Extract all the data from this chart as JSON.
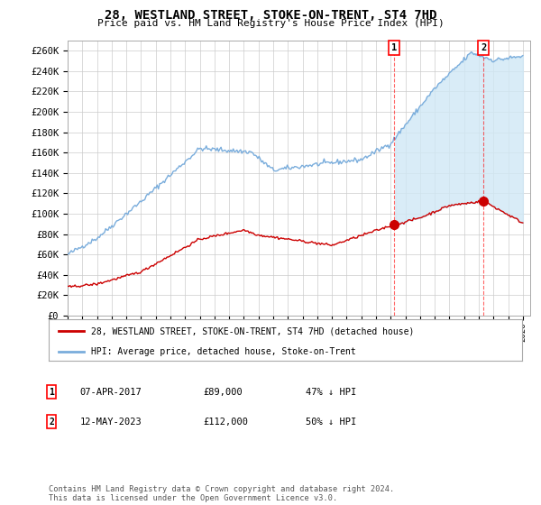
{
  "title": "28, WESTLAND STREET, STOKE-ON-TRENT, ST4 7HD",
  "subtitle": "Price paid vs. HM Land Registry's House Price Index (HPI)",
  "ylabel_ticks": [
    "£0",
    "£20K",
    "£40K",
    "£60K",
    "£80K",
    "£100K",
    "£120K",
    "£140K",
    "£160K",
    "£180K",
    "£200K",
    "£220K",
    "£240K",
    "£260K"
  ],
  "ytick_values": [
    0,
    20000,
    40000,
    60000,
    80000,
    100000,
    120000,
    140000,
    160000,
    180000,
    200000,
    220000,
    240000,
    260000
  ],
  "ylim": [
    0,
    270000
  ],
  "hpi_color": "#7aaddc",
  "price_color": "#cc0000",
  "fill_color": "#d0e8f5",
  "marker1_x": 2017.25,
  "marker1_price": 89000,
  "marker1_date": "07-APR-2017",
  "marker1_label": "47% ↓ HPI",
  "marker2_x": 2023.33,
  "marker2_price": 112000,
  "marker2_date": "12-MAY-2023",
  "marker2_label": "50% ↓ HPI",
  "legend_line1": "28, WESTLAND STREET, STOKE-ON-TRENT, ST4 7HD (detached house)",
  "legend_line2": "HPI: Average price, detached house, Stoke-on-Trent",
  "footnote": "Contains HM Land Registry data © Crown copyright and database right 2024.\nThis data is licensed under the Open Government Licence v3.0.",
  "background_color": "#ffffff",
  "grid_color": "#cccccc"
}
